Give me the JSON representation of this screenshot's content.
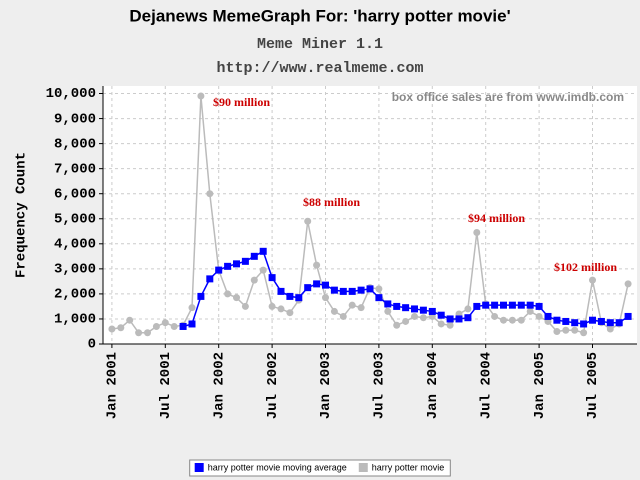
{
  "chart_data": {
    "type": "line",
    "title": "Dejanews MemeGraph For: 'harry potter movie'",
    "subtitle": "Meme Miner 1.1",
    "url": "http://www.realmeme.com",
    "y_label": "Frequency Count",
    "note": "box office sales are from www.imdb.com",
    "annotations": [
      "$90 million",
      "$88 million",
      "$94 million",
      "$102 million"
    ],
    "grid": true,
    "legend": "bottom",
    "x": [
      "2001-01",
      "2001-02",
      "2001-03",
      "2001-04",
      "2001-05",
      "2001-06",
      "2001-07",
      "2001-08",
      "2001-09",
      "2001-10",
      "2001-11",
      "2001-12",
      "2002-01",
      "2002-02",
      "2002-03",
      "2002-04",
      "2002-05",
      "2002-06",
      "2002-07",
      "2002-08",
      "2002-09",
      "2002-10",
      "2002-11",
      "2002-12",
      "2003-01",
      "2003-02",
      "2003-03",
      "2003-04",
      "2003-05",
      "2003-06",
      "2003-07",
      "2003-08",
      "2003-09",
      "2003-10",
      "2003-11",
      "2003-12",
      "2004-01",
      "2004-02",
      "2004-03",
      "2004-04",
      "2004-05",
      "2004-06",
      "2004-07",
      "2004-08",
      "2004-09",
      "2004-10",
      "2004-11",
      "2004-12",
      "2005-01",
      "2005-02",
      "2005-03",
      "2005-04",
      "2005-05",
      "2005-06",
      "2005-07",
      "2005-08",
      "2005-09",
      "2005-10",
      "2005-11"
    ],
    "xlim": [
      "2000-12",
      "2005-12"
    ],
    "xticks": [
      {
        "value": "2001-01",
        "label": "Jan 2001"
      },
      {
        "value": "2001-07",
        "label": "Jul 2001"
      },
      {
        "value": "2002-01",
        "label": "Jan 2002"
      },
      {
        "value": "2002-07",
        "label": "Jul 2002"
      },
      {
        "value": "2003-01",
        "label": "Jan 2003"
      },
      {
        "value": "2003-07",
        "label": "Jul 2003"
      },
      {
        "value": "2004-01",
        "label": "Jan 2004"
      },
      {
        "value": "2004-07",
        "label": "Jul 2004"
      },
      {
        "value": "2005-01",
        "label": "Jan 2005"
      },
      {
        "value": "2005-07",
        "label": "Jul 2005"
      }
    ],
    "ylim": [
      0,
      10300
    ],
    "yticks": [
      0,
      {
        "value": 1000,
        "label": "1,000"
      },
      {
        "value": 2000,
        "label": "2,000"
      },
      {
        "value": 3000,
        "label": "3,000"
      },
      {
        "value": 4000,
        "label": "4,000"
      },
      {
        "value": 5000,
        "label": "5,000"
      },
      {
        "value": 6000,
        "label": "6,000"
      },
      {
        "value": 7000,
        "label": "7,000"
      },
      {
        "value": 8000,
        "label": "8,000"
      },
      {
        "value": 9000,
        "label": "9,000"
      },
      {
        "value": 10000,
        "label": "10,000"
      }
    ],
    "series": [
      {
        "name": "harry potter movie moving average",
        "color": "#0000ff",
        "marker": "square",
        "values": [
          null,
          null,
          null,
          null,
          null,
          null,
          null,
          null,
          700,
          800,
          1900,
          2600,
          2950,
          3100,
          3200,
          3300,
          3500,
          3700,
          2650,
          2100,
          1900,
          1850,
          2250,
          2400,
          2350,
          2150,
          2100,
          2100,
          2150,
          2200,
          1850,
          1600,
          1500,
          1450,
          1400,
          1350,
          1300,
          1150,
          1000,
          1000,
          1050,
          1500,
          1550,
          1550,
          1550,
          1550,
          1550,
          1550,
          1500,
          1100,
          950,
          900,
          850,
          800,
          950,
          900,
          850,
          850,
          1100
        ]
      },
      {
        "name": "harry potter movie",
        "color": "#bbbbbb",
        "marker": "circle",
        "values": [
          600,
          650,
          950,
          450,
          450,
          700,
          850,
          700,
          750,
          1450,
          9900,
          6000,
          2950,
          2000,
          1850,
          1500,
          2550,
          2950,
          1500,
          1400,
          1250,
          1750,
          4900,
          3150,
          1850,
          1300,
          1100,
          1550,
          1450,
          2250,
          2200,
          1300,
          750,
          900,
          1100,
          1050,
          1100,
          800,
          750,
          1200,
          1400,
          4450,
          1600,
          1100,
          950,
          950,
          950,
          1300,
          1100,
          900,
          500,
          550,
          550,
          450,
          2550,
          850,
          600,
          800,
          2400
        ]
      }
    ]
  }
}
